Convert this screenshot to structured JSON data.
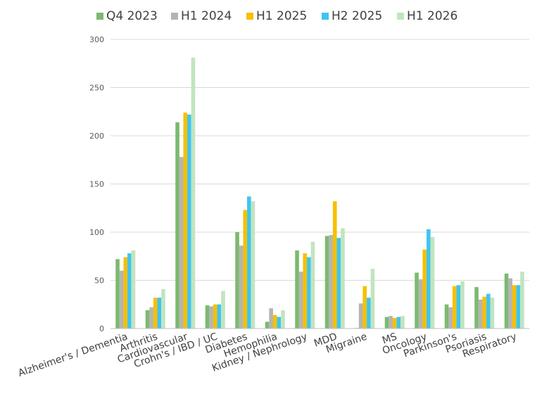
{
  "chart_data": {
    "type": "bar",
    "title": "",
    "xlabel": "",
    "ylabel": "",
    "ylim": [
      0,
      300
    ],
    "yticks": [
      0,
      50,
      100,
      150,
      200,
      250,
      300
    ],
    "grid": true,
    "legend_position": "top",
    "categories": [
      "Alzheimer's / Dementia",
      "Arthritis",
      "Cardiovascular",
      "Crohn's / IBD / UC",
      "Diabetes",
      "Hemophilia",
      "Kidney / Nephrology",
      "MDD",
      "Migraine",
      "MS",
      "Oncology",
      "Parkinson's",
      "Psoriasis",
      "Respiratory"
    ],
    "series": [
      {
        "name": "Q4 2023",
        "color": "#7cba6f",
        "values": [
          72,
          19,
          214,
          24,
          100,
          7,
          81,
          96,
          0,
          12,
          58,
          25,
          43,
          57
        ]
      },
      {
        "name": "H1 2024",
        "color": "#b4b4b4",
        "values": [
          60,
          22,
          178,
          23,
          86,
          21,
          59,
          97,
          26,
          13,
          51,
          22,
          30,
          52
        ]
      },
      {
        "name": "H1 2025",
        "color": "#f7c000",
        "values": [
          74,
          32,
          224,
          25,
          123,
          14,
          78,
          132,
          44,
          11,
          82,
          44,
          33,
          45
        ]
      },
      {
        "name": "H2 2025",
        "color": "#3fc5f0",
        "values": [
          78,
          32,
          222,
          25,
          137,
          12,
          74,
          94,
          32,
          12,
          103,
          45,
          36,
          45
        ]
      },
      {
        "name": "H1 2026",
        "color": "#c2e4bf",
        "values": [
          81,
          41,
          281,
          39,
          132,
          19,
          90,
          104,
          62,
          13,
          95,
          49,
          32,
          59
        ]
      }
    ]
  }
}
